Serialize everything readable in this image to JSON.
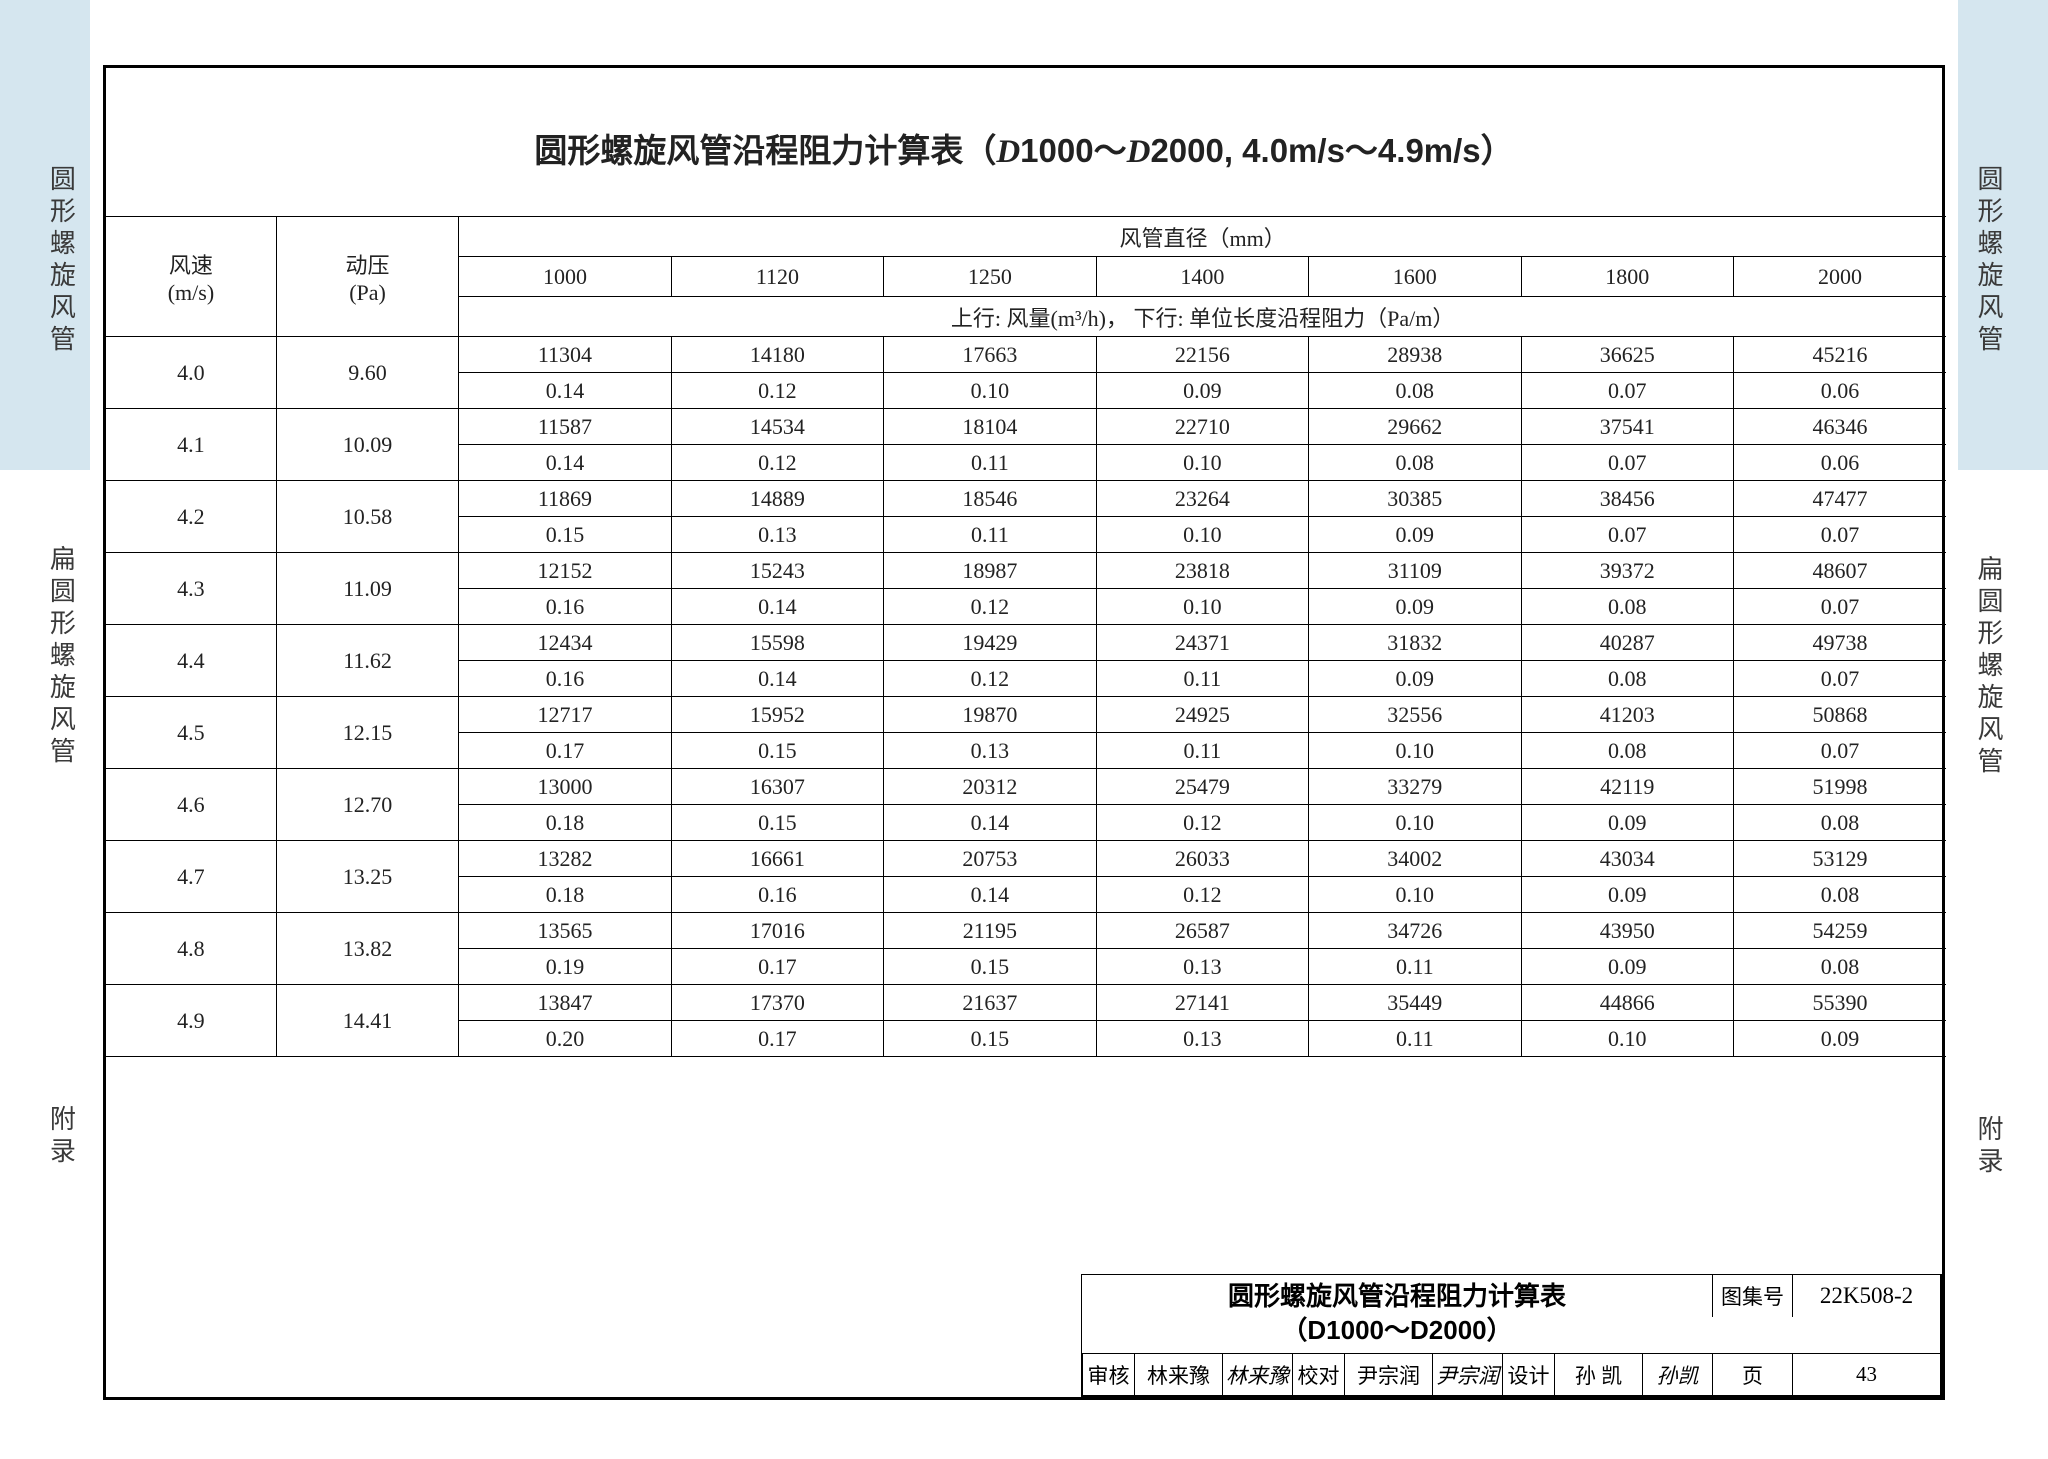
{
  "page": {
    "bg_color": "#ffffff",
    "accent_bg": "#d5e6ef",
    "border_color": "#000000",
    "text_color": "#222222"
  },
  "side_tabs": {
    "tab1": "圆形螺旋风管",
    "tab2": "扁圆形螺旋风管",
    "tab3": "附录"
  },
  "title": {
    "prefix": "圆形螺旋风管沿程阻力计算表（",
    "d1": "D",
    "range1": "1000～",
    "d2": "D",
    "range2": "2000, 4.0m/s～4.9m/s）"
  },
  "headers": {
    "speed": "风速",
    "speed_unit": "(m/s)",
    "pressure": "动压",
    "pressure_unit": "(Pa)",
    "diameter": "风管直径（mm）",
    "subhead": "上行: 风量(m³/h)，  下行: 单位长度沿程阻力（Pa/m）",
    "diameters": [
      "1000",
      "1120",
      "1250",
      "1400",
      "1600",
      "1800",
      "2000"
    ]
  },
  "rows": [
    {
      "v": "4.0",
      "p": "9.60",
      "q": [
        "11304",
        "14180",
        "17663",
        "22156",
        "28938",
        "36625",
        "45216"
      ],
      "r": [
        "0.14",
        "0.12",
        "0.10",
        "0.09",
        "0.08",
        "0.07",
        "0.06"
      ]
    },
    {
      "v": "4.1",
      "p": "10.09",
      "q": [
        "11587",
        "14534",
        "18104",
        "22710",
        "29662",
        "37541",
        "46346"
      ],
      "r": [
        "0.14",
        "0.12",
        "0.11",
        "0.10",
        "0.08",
        "0.07",
        "0.06"
      ]
    },
    {
      "v": "4.2",
      "p": "10.58",
      "q": [
        "11869",
        "14889",
        "18546",
        "23264",
        "30385",
        "38456",
        "47477"
      ],
      "r": [
        "0.15",
        "0.13",
        "0.11",
        "0.10",
        "0.09",
        "0.07",
        "0.07"
      ]
    },
    {
      "v": "4.3",
      "p": "11.09",
      "q": [
        "12152",
        "15243",
        "18987",
        "23818",
        "31109",
        "39372",
        "48607"
      ],
      "r": [
        "0.16",
        "0.14",
        "0.12",
        "0.10",
        "0.09",
        "0.08",
        "0.07"
      ]
    },
    {
      "v": "4.4",
      "p": "11.62",
      "q": [
        "12434",
        "15598",
        "19429",
        "24371",
        "31832",
        "40287",
        "49738"
      ],
      "r": [
        "0.16",
        "0.14",
        "0.12",
        "0.11",
        "0.09",
        "0.08",
        "0.07"
      ]
    },
    {
      "v": "4.5",
      "p": "12.15",
      "q": [
        "12717",
        "15952",
        "19870",
        "24925",
        "32556",
        "41203",
        "50868"
      ],
      "r": [
        "0.17",
        "0.15",
        "0.13",
        "0.11",
        "0.10",
        "0.08",
        "0.07"
      ]
    },
    {
      "v": "4.6",
      "p": "12.70",
      "q": [
        "13000",
        "16307",
        "20312",
        "25479",
        "33279",
        "42119",
        "51998"
      ],
      "r": [
        "0.18",
        "0.15",
        "0.14",
        "0.12",
        "0.10",
        "0.09",
        "0.08"
      ]
    },
    {
      "v": "4.7",
      "p": "13.25",
      "q": [
        "13282",
        "16661",
        "20753",
        "26033",
        "34002",
        "43034",
        "53129"
      ],
      "r": [
        "0.18",
        "0.16",
        "0.14",
        "0.12",
        "0.10",
        "0.09",
        "0.08"
      ]
    },
    {
      "v": "4.8",
      "p": "13.82",
      "q": [
        "13565",
        "17016",
        "21195",
        "26587",
        "34726",
        "43950",
        "54259"
      ],
      "r": [
        "0.19",
        "0.17",
        "0.15",
        "0.13",
        "0.11",
        "0.09",
        "0.08"
      ]
    },
    {
      "v": "4.9",
      "p": "14.41",
      "q": [
        "13847",
        "17370",
        "21637",
        "27141",
        "35449",
        "44866",
        "55390"
      ],
      "r": [
        "0.20",
        "0.17",
        "0.15",
        "0.13",
        "0.11",
        "0.10",
        "0.09"
      ]
    }
  ],
  "title_block": {
    "main1": "圆形螺旋风管沿程阻力计算表",
    "main2": "（D1000～D2000）",
    "series_label": "图集号",
    "series_code": "22K508-2",
    "review_label": "审核",
    "reviewer": "林来豫",
    "reviewer_sig": "林来豫",
    "check_label": "校对",
    "checker": "尹宗润",
    "checker_sig": "尹宗润",
    "design_label": "设计",
    "designer": "孙  凯",
    "designer_sig": "孙凯",
    "page_label": "页",
    "page_num": "43"
  }
}
